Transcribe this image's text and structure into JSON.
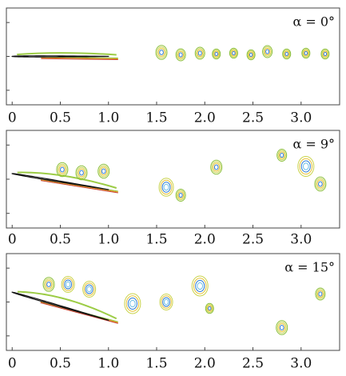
{
  "chart_data": [
    {
      "type": "contour",
      "annotation": "α = 0°",
      "xlim": [
        -0.06,
        3.4
      ],
      "xticks": [
        0,
        0.5,
        {
          "value": 1,
          "label": "1.0"
        },
        1.5,
        {
          "value": 2,
          "label": "2.0"
        },
        2.5,
        {
          "value": 3,
          "label": "3.0"
        }
      ]
    },
    {
      "type": "contour",
      "annotation": "α = 9°",
      "xlim": [
        -0.06,
        3.4
      ],
      "xticks": [
        0,
        0.5,
        {
          "value": 1,
          "label": "1.0"
        },
        1.5,
        {
          "value": 2,
          "label": "2.0"
        },
        2.5,
        {
          "value": 3,
          "label": "3.0"
        }
      ]
    },
    {
      "type": "contour",
      "annotation": "α = 15°",
      "xlim": [
        -0.06,
        3.4
      ],
      "xticks": [
        0,
        0.5,
        {
          "value": 1,
          "label": "1.0"
        },
        1.5,
        {
          "value": 2,
          "label": "2.0"
        },
        2.5,
        {
          "value": 3,
          "label": "3.0"
        }
      ]
    }
  ]
}
